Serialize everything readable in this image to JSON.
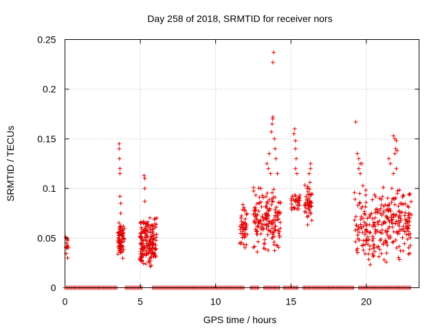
{
  "chart_data": {
    "type": "scatter",
    "title": "Day 258 of 2018, SRMTID for receiver nors",
    "xlabel": "GPS time / hours",
    "ylabel": "SRMTID / TECUs",
    "xlim": [
      0,
      23.5
    ],
    "ylim": [
      0,
      0.25
    ],
    "xticks": [
      0,
      5,
      10,
      15,
      20
    ],
    "xtick_labels": [
      "0",
      "5",
      "10",
      "15",
      "20"
    ],
    "yticks": [
      0,
      0.05,
      0.1,
      0.15,
      0.2,
      0.25
    ],
    "ytick_labels": [
      "0",
      "0.05",
      "0.1",
      "0.15",
      "0.2",
      "0.25"
    ],
    "grid": true,
    "marker": "+",
    "color": "#e00000",
    "zero_band_hours": [
      [
        0,
        3.5
      ],
      [
        4.0,
        5.2
      ],
      [
        5.8,
        11.9
      ],
      [
        12.3,
        12.9
      ],
      [
        13.2,
        14.3
      ],
      [
        14.5,
        15.5
      ],
      [
        15.8,
        19.2
      ],
      [
        19.5,
        23.0
      ]
    ],
    "clusters": [
      {
        "x_range": [
          0.05,
          0.25
        ],
        "y_range": [
          0.03,
          0.052
        ],
        "count": 8
      },
      {
        "x_range": [
          3.5,
          3.95
        ],
        "y_range": [
          0.028,
          0.068
        ],
        "count": 70
      },
      {
        "x_range": [
          4.95,
          6.1
        ],
        "y_range": [
          0.018,
          0.072
        ],
        "count": 170
      },
      {
        "x_range": [
          11.6,
          12.1
        ],
        "y_range": [
          0.03,
          0.09
        ],
        "count": 45
      },
      {
        "x_range": [
          12.5,
          14.3
        ],
        "y_range": [
          0.03,
          0.105
        ],
        "count": 160
      },
      {
        "x_range": [
          15.0,
          15.6
        ],
        "y_range": [
          0.075,
          0.1
        ],
        "count": 30
      },
      {
        "x_range": [
          15.9,
          16.4
        ],
        "y_range": [
          0.06,
          0.11
        ],
        "count": 45
      },
      {
        "x_range": [
          19.2,
          23.0
        ],
        "y_range": [
          0.02,
          0.11
        ],
        "count": 280
      }
    ],
    "points": [
      [
        0.1,
        0.045
      ],
      [
        0.12,
        0.05
      ],
      [
        0.15,
        0.04
      ],
      [
        0.18,
        0.03
      ],
      [
        0.2,
        0.048
      ],
      [
        3.6,
        0.145
      ],
      [
        3.6,
        0.14
      ],
      [
        3.62,
        0.13
      ],
      [
        3.65,
        0.12
      ],
      [
        3.65,
        0.115
      ],
      [
        3.65,
        0.092
      ],
      [
        3.7,
        0.085
      ],
      [
        3.7,
        0.075
      ],
      [
        5.25,
        0.113
      ],
      [
        5.3,
        0.11
      ],
      [
        5.3,
        0.1
      ],
      [
        5.3,
        0.087
      ],
      [
        12.9,
        0.085
      ],
      [
        13.0,
        0.1
      ],
      [
        13.4,
        0.125
      ],
      [
        13.5,
        0.12
      ],
      [
        13.55,
        0.135
      ],
      [
        13.65,
        0.115
      ],
      [
        13.7,
        0.157
      ],
      [
        13.75,
        0.165
      ],
      [
        13.78,
        0.17
      ],
      [
        13.8,
        0.172
      ],
      [
        13.8,
        0.227
      ],
      [
        13.85,
        0.237
      ],
      [
        13.9,
        0.15
      ],
      [
        13.95,
        0.14
      ],
      [
        14.0,
        0.13
      ],
      [
        14.1,
        0.115
      ],
      [
        15.2,
        0.155
      ],
      [
        15.25,
        0.16
      ],
      [
        15.3,
        0.148
      ],
      [
        15.3,
        0.14
      ],
      [
        15.35,
        0.13
      ],
      [
        15.3,
        0.12
      ],
      [
        15.4,
        0.115
      ],
      [
        16.3,
        0.125
      ],
      [
        16.3,
        0.12
      ],
      [
        16.2,
        0.115
      ],
      [
        19.3,
        0.167
      ],
      [
        19.4,
        0.135
      ],
      [
        19.5,
        0.13
      ],
      [
        19.6,
        0.125
      ],
      [
        19.7,
        0.125
      ],
      [
        19.5,
        0.12
      ],
      [
        19.6,
        0.115
      ],
      [
        21.5,
        0.13
      ],
      [
        21.6,
        0.125
      ],
      [
        21.8,
        0.153
      ],
      [
        21.9,
        0.15
      ],
      [
        22.0,
        0.148
      ],
      [
        21.95,
        0.14
      ],
      [
        22.05,
        0.138
      ],
      [
        21.9,
        0.135
      ],
      [
        22.0,
        0.12
      ],
      [
        21.8,
        0.115
      ]
    ]
  }
}
